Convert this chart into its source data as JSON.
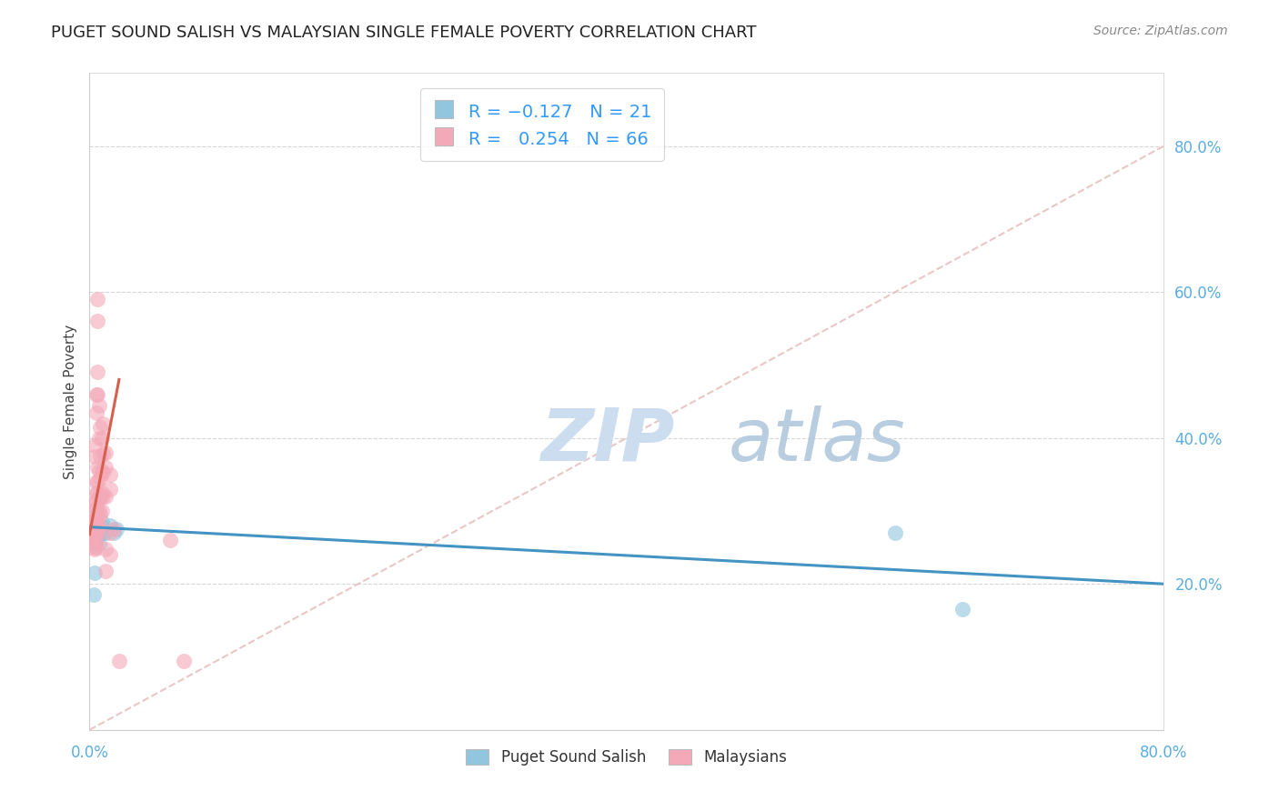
{
  "title": "PUGET SOUND SALISH VS MALAYSIAN SINGLE FEMALE POVERTY CORRELATION CHART",
  "source": "Source: ZipAtlas.com",
  "ylabel": "Single Female Poverty",
  "xlim": [
    0.0,
    0.8
  ],
  "ylim": [
    0.0,
    0.9
  ],
  "yticks": [
    0.2,
    0.4,
    0.6,
    0.8
  ],
  "ytick_labels": [
    "20.0%",
    "40.0%",
    "60.0%",
    "80.0%"
  ],
  "xticks": [
    0.0,
    0.16,
    0.32,
    0.48,
    0.64,
    0.8
  ],
  "xtick_labels": [
    "0.0%",
    "",
    "",
    "",
    "",
    "80.0%"
  ],
  "blue_color": "#92c5de",
  "pink_color": "#f4a9b8",
  "blue_line_color": "#4393c3",
  "pink_line_color": "#d6604d",
  "diagonal_color": "#e8c0c0",
  "watermark_color": "#d0e4f0",
  "blue_scatter": [
    [
      0.003,
      0.185
    ],
    [
      0.004,
      0.215
    ],
    [
      0.004,
      0.255
    ],
    [
      0.005,
      0.265
    ],
    [
      0.005,
      0.275
    ],
    [
      0.005,
      0.285
    ],
    [
      0.005,
      0.295
    ],
    [
      0.006,
      0.265
    ],
    [
      0.006,
      0.28
    ],
    [
      0.007,
      0.255
    ],
    [
      0.007,
      0.275
    ],
    [
      0.008,
      0.27
    ],
    [
      0.009,
      0.285
    ],
    [
      0.01,
      0.27
    ],
    [
      0.01,
      0.278
    ],
    [
      0.012,
      0.27
    ],
    [
      0.015,
      0.28
    ],
    [
      0.018,
      0.27
    ],
    [
      0.02,
      0.275
    ],
    [
      0.6,
      0.27
    ],
    [
      0.65,
      0.165
    ]
  ],
  "pink_scatter": [
    [
      0.002,
      0.265
    ],
    [
      0.003,
      0.25
    ],
    [
      0.003,
      0.275
    ],
    [
      0.003,
      0.285
    ],
    [
      0.004,
      0.248
    ],
    [
      0.004,
      0.262
    ],
    [
      0.004,
      0.27
    ],
    [
      0.004,
      0.278
    ],
    [
      0.004,
      0.288
    ],
    [
      0.004,
      0.3
    ],
    [
      0.004,
      0.31
    ],
    [
      0.004,
      0.375
    ],
    [
      0.004,
      0.39
    ],
    [
      0.005,
      0.25
    ],
    [
      0.005,
      0.26
    ],
    [
      0.005,
      0.27
    ],
    [
      0.005,
      0.28
    ],
    [
      0.005,
      0.292
    ],
    [
      0.005,
      0.305
    ],
    [
      0.005,
      0.315
    ],
    [
      0.005,
      0.325
    ],
    [
      0.005,
      0.34
    ],
    [
      0.005,
      0.435
    ],
    [
      0.005,
      0.46
    ],
    [
      0.006,
      0.275
    ],
    [
      0.006,
      0.285
    ],
    [
      0.006,
      0.295
    ],
    [
      0.006,
      0.325
    ],
    [
      0.006,
      0.34
    ],
    [
      0.006,
      0.36
    ],
    [
      0.006,
      0.46
    ],
    [
      0.006,
      0.49
    ],
    [
      0.006,
      0.56
    ],
    [
      0.006,
      0.59
    ],
    [
      0.007,
      0.28
    ],
    [
      0.007,
      0.3
    ],
    [
      0.007,
      0.32
    ],
    [
      0.007,
      0.355
    ],
    [
      0.007,
      0.4
    ],
    [
      0.007,
      0.445
    ],
    [
      0.008,
      0.295
    ],
    [
      0.008,
      0.318
    ],
    [
      0.008,
      0.345
    ],
    [
      0.008,
      0.375
    ],
    [
      0.008,
      0.415
    ],
    [
      0.009,
      0.3
    ],
    [
      0.009,
      0.325
    ],
    [
      0.009,
      0.355
    ],
    [
      0.009,
      0.4
    ],
    [
      0.01,
      0.32
    ],
    [
      0.01,
      0.352
    ],
    [
      0.01,
      0.378
    ],
    [
      0.01,
      0.42
    ],
    [
      0.012,
      0.218
    ],
    [
      0.012,
      0.248
    ],
    [
      0.012,
      0.32
    ],
    [
      0.012,
      0.36
    ],
    [
      0.012,
      0.38
    ],
    [
      0.015,
      0.24
    ],
    [
      0.015,
      0.27
    ],
    [
      0.015,
      0.33
    ],
    [
      0.015,
      0.35
    ],
    [
      0.018,
      0.275
    ],
    [
      0.022,
      0.095
    ],
    [
      0.06,
      0.26
    ],
    [
      0.07,
      0.095
    ]
  ],
  "blue_trend_x": [
    0.0,
    0.8
  ],
  "blue_trend_y": [
    0.278,
    0.2
  ],
  "pink_trend_x": [
    0.0,
    0.022
  ],
  "pink_trend_y": [
    0.268,
    0.48
  ]
}
